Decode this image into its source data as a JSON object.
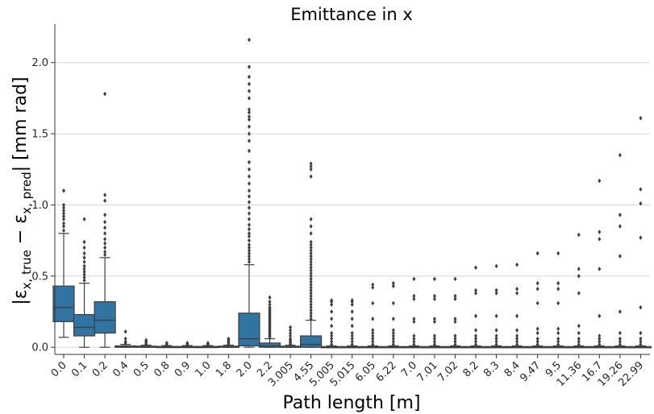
{
  "chart_data": {
    "type": "box",
    "title": "Emittance in x",
    "xlabel": "Path length [m]",
    "ylabel": {
      "lead": "|ε",
      "sub1": "x, true",
      "mid": " − ε",
      "sub2": "x, pred",
      "tail": "| [mm rad]"
    },
    "ylim": [
      -0.05,
      2.27
    ],
    "yticks": [
      0.0,
      0.5,
      1.0,
      1.5,
      2.0
    ],
    "ytick_labels": [
      "0.0",
      "0.5",
      "1.0",
      "1.5",
      "2.0"
    ],
    "grid": {
      "y": true,
      "x": false
    },
    "box_color": "#3274a1",
    "edge_color": "#3f3f3f",
    "categories": [
      "0.0",
      "0.1",
      "0.2",
      "0.4",
      "0.5",
      "0.8",
      "0.9",
      "1.0",
      "1.8",
      "2.0",
      "2.2",
      "3.005",
      "4.55",
      "5.005",
      "5.015",
      "6.05",
      "6.22",
      "7.0",
      "7.01",
      "7.02",
      "8.2",
      "8.3",
      "8.4",
      "9.47",
      "9.5",
      "11.36",
      "16.7",
      "19.26",
      "22.99"
    ],
    "boxes": [
      {
        "q1": 0.18,
        "med": 0.28,
        "q3": 0.43,
        "wlo": 0.07,
        "whi": 0.8,
        "out": [
          0.82,
          0.85,
          0.87,
          0.9,
          0.92,
          0.94,
          0.96,
          0.98,
          1.0,
          1.1
        ]
      },
      {
        "q1": 0.08,
        "med": 0.14,
        "q3": 0.23,
        "wlo": 0.0,
        "whi": 0.45,
        "out": [
          0.47,
          0.49,
          0.51,
          0.53,
          0.55,
          0.57,
          0.6,
          0.63,
          0.66,
          0.7,
          0.74,
          0.9
        ]
      },
      {
        "q1": 0.1,
        "med": 0.19,
        "q3": 0.32,
        "wlo": 0.0,
        "whi": 0.63,
        "out": [
          0.65,
          0.67,
          0.7,
          0.73,
          0.76,
          0.8,
          0.84,
          0.88,
          0.93,
          1.03,
          1.07,
          1.78
        ]
      },
      {
        "q1": 0.0,
        "med": 0.005,
        "q3": 0.01,
        "wlo": 0.0,
        "whi": 0.02,
        "out": [
          0.03,
          0.04,
          0.06,
          0.11
        ]
      },
      {
        "q1": 0.0,
        "med": 0.004,
        "q3": 0.008,
        "wlo": 0.0,
        "whi": 0.015,
        "out": [
          0.02,
          0.03,
          0.04,
          0.05
        ]
      },
      {
        "q1": 0.0,
        "med": 0.003,
        "q3": 0.006,
        "wlo": 0.0,
        "whi": 0.012,
        "out": [
          0.018,
          0.025,
          0.03
        ]
      },
      {
        "q1": 0.0,
        "med": 0.003,
        "q3": 0.006,
        "wlo": 0.0,
        "whi": 0.012,
        "out": [
          0.018,
          0.025,
          0.03
        ]
      },
      {
        "q1": 0.0,
        "med": 0.003,
        "q3": 0.006,
        "wlo": 0.0,
        "whi": 0.012,
        "out": [
          0.018,
          0.025,
          0.03
        ]
      },
      {
        "q1": 0.0,
        "med": 0.004,
        "q3": 0.008,
        "wlo": 0.0,
        "whi": 0.015,
        "out": [
          0.02,
          0.03,
          0.04,
          0.05,
          0.06
        ]
      },
      {
        "q1": 0.01,
        "med": 0.06,
        "q3": 0.24,
        "wlo": 0.0,
        "whi": 0.58,
        "out": [
          0.6,
          0.62,
          0.64,
          0.66,
          0.68,
          0.7,
          0.72,
          0.75,
          0.78,
          0.8,
          0.83,
          0.86,
          0.9,
          0.94,
          0.98,
          1.02,
          1.06,
          1.1,
          1.15,
          1.2,
          1.25,
          1.3,
          1.38,
          1.45,
          1.5,
          1.55,
          1.6,
          1.62,
          1.65,
          1.67,
          1.75,
          1.8,
          1.85,
          1.9,
          1.97,
          2.16
        ]
      },
      {
        "q1": 0.0,
        "med": 0.01,
        "q3": 0.03,
        "wlo": 0.0,
        "whi": 0.06,
        "out": [
          0.07,
          0.08,
          0.09,
          0.1,
          0.11,
          0.12,
          0.13,
          0.14,
          0.15,
          0.16,
          0.17,
          0.18,
          0.19,
          0.2,
          0.21,
          0.22,
          0.23,
          0.24,
          0.25,
          0.26,
          0.27,
          0.28,
          0.3,
          0.32,
          0.35
        ]
      },
      {
        "q1": 0.0,
        "med": 0.004,
        "q3": 0.008,
        "wlo": 0.0,
        "whi": 0.015,
        "out": [
          0.02,
          0.03,
          0.04,
          0.05,
          0.06,
          0.08,
          0.1,
          0.12,
          0.14
        ]
      },
      {
        "q1": 0.0,
        "med": 0.02,
        "q3": 0.08,
        "wlo": 0.0,
        "whi": 0.19,
        "out": [
          0.2,
          0.22,
          0.24,
          0.26,
          0.28,
          0.3,
          0.32,
          0.34,
          0.36,
          0.38,
          0.4,
          0.42,
          0.44,
          0.46,
          0.48,
          0.5,
          0.52,
          0.54,
          0.56,
          0.58,
          0.6,
          0.62,
          0.64,
          0.66,
          0.68,
          0.7,
          0.72,
          0.74,
          0.8,
          0.85,
          0.9,
          1.2,
          1.25,
          1.27,
          1.29
        ]
      },
      {
        "q1": 0.0,
        "med": 0.002,
        "q3": 0.005,
        "wlo": 0.0,
        "whi": 0.01,
        "out": [
          0.02,
          0.04,
          0.06,
          0.08,
          0.1,
          0.15,
          0.2,
          0.25,
          0.3,
          0.32,
          0.33
        ]
      },
      {
        "q1": 0.0,
        "med": 0.002,
        "q3": 0.005,
        "wlo": 0.0,
        "whi": 0.01,
        "out": [
          0.02,
          0.04,
          0.06,
          0.08,
          0.1,
          0.15,
          0.2,
          0.25,
          0.3,
          0.32,
          0.33
        ]
      },
      {
        "q1": 0.0,
        "med": 0.002,
        "q3": 0.005,
        "wlo": 0.0,
        "whi": 0.01,
        "out": [
          0.02,
          0.04,
          0.06,
          0.08,
          0.1,
          0.12,
          0.2,
          0.31,
          0.42,
          0.44
        ]
      },
      {
        "q1": 0.0,
        "med": 0.002,
        "q3": 0.005,
        "wlo": 0.0,
        "whi": 0.01,
        "out": [
          0.02,
          0.04,
          0.06,
          0.08,
          0.1,
          0.12,
          0.2,
          0.31,
          0.43,
          0.45
        ]
      },
      {
        "q1": 0.0,
        "med": 0.002,
        "q3": 0.005,
        "wlo": 0.0,
        "whi": 0.01,
        "out": [
          0.02,
          0.04,
          0.06,
          0.08,
          0.18,
          0.2,
          0.34,
          0.36,
          0.48
        ]
      },
      {
        "q1": 0.0,
        "med": 0.002,
        "q3": 0.005,
        "wlo": 0.0,
        "whi": 0.01,
        "out": [
          0.02,
          0.04,
          0.06,
          0.08,
          0.18,
          0.2,
          0.34,
          0.36,
          0.48
        ]
      },
      {
        "q1": 0.0,
        "med": 0.002,
        "q3": 0.005,
        "wlo": 0.0,
        "whi": 0.01,
        "out": [
          0.02,
          0.04,
          0.06,
          0.08,
          0.18,
          0.2,
          0.34,
          0.36,
          0.48
        ]
      },
      {
        "q1": 0.0,
        "med": 0.002,
        "q3": 0.005,
        "wlo": 0.0,
        "whi": 0.01,
        "out": [
          0.02,
          0.04,
          0.06,
          0.08,
          0.12,
          0.22,
          0.38,
          0.4,
          0.56
        ]
      },
      {
        "q1": 0.0,
        "med": 0.002,
        "q3": 0.005,
        "wlo": 0.0,
        "whi": 0.01,
        "out": [
          0.02,
          0.04,
          0.06,
          0.08,
          0.12,
          0.22,
          0.38,
          0.4,
          0.57
        ]
      },
      {
        "q1": 0.0,
        "med": 0.002,
        "q3": 0.005,
        "wlo": 0.0,
        "whi": 0.01,
        "out": [
          0.02,
          0.04,
          0.06,
          0.08,
          0.12,
          0.22,
          0.38,
          0.41,
          0.58
        ]
      },
      {
        "q1": 0.0,
        "med": 0.002,
        "q3": 0.005,
        "wlo": 0.0,
        "whi": 0.01,
        "out": [
          0.02,
          0.04,
          0.06,
          0.1,
          0.13,
          0.31,
          0.41,
          0.45,
          0.66
        ]
      },
      {
        "q1": 0.0,
        "med": 0.002,
        "q3": 0.005,
        "wlo": 0.0,
        "whi": 0.01,
        "out": [
          0.02,
          0.04,
          0.06,
          0.1,
          0.13,
          0.31,
          0.41,
          0.45,
          0.66
        ]
      },
      {
        "q1": 0.0,
        "med": 0.002,
        "q3": 0.005,
        "wlo": 0.0,
        "whi": 0.01,
        "out": [
          0.02,
          0.04,
          0.06,
          0.1,
          0.15,
          0.38,
          0.5,
          0.55,
          0.79
        ]
      },
      {
        "q1": 0.0,
        "med": 0.002,
        "q3": 0.005,
        "wlo": 0.0,
        "whi": 0.01,
        "out": [
          0.02,
          0.04,
          0.06,
          0.08,
          0.22,
          0.55,
          0.76,
          0.81,
          1.17
        ]
      },
      {
        "q1": 0.0,
        "med": 0.002,
        "q3": 0.005,
        "wlo": 0.0,
        "whi": 0.01,
        "out": [
          0.02,
          0.04,
          0.06,
          0.1,
          0.25,
          0.64,
          0.85,
          0.93,
          1.35
        ]
      },
      {
        "q1": 0.0,
        "med": 0.002,
        "q3": 0.005,
        "wlo": 0.0,
        "whi": 0.01,
        "out": [
          0.02,
          0.04,
          0.06,
          0.1,
          0.28,
          0.77,
          1.01,
          1.11,
          1.61
        ]
      }
    ]
  }
}
